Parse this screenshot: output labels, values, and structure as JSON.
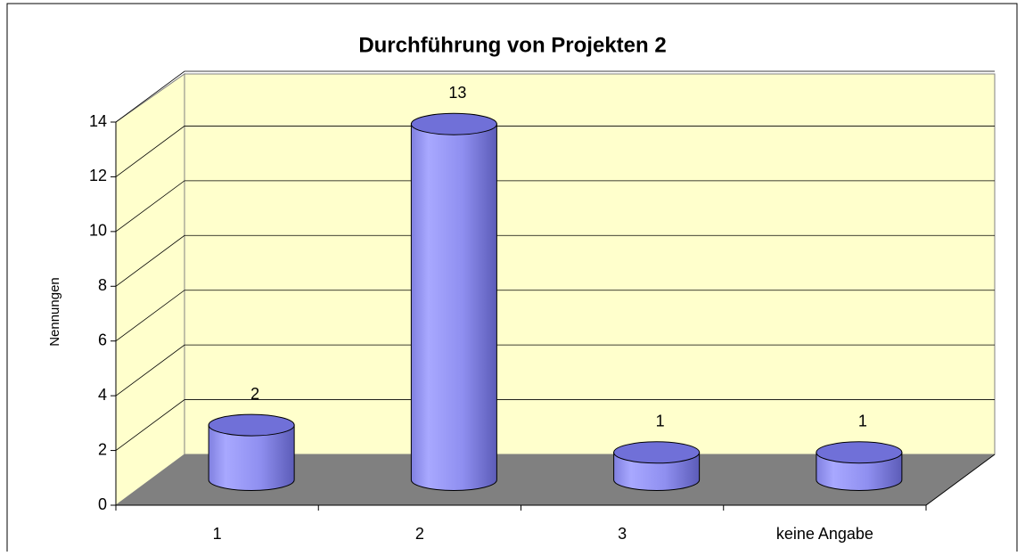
{
  "chart_data": {
    "type": "bar",
    "title": "Durchführung von Projekten 2",
    "y_label": "Nennungen",
    "categories": [
      "1",
      "2",
      "3",
      "keine Angabe"
    ],
    "values": [
      2,
      13,
      1,
      1
    ],
    "color": "#9999ff",
    "ylim": [
      0,
      14
    ],
    "yticks": [
      0,
      2,
      4,
      6,
      8,
      10,
      12,
      14
    ],
    "grid": true
  }
}
